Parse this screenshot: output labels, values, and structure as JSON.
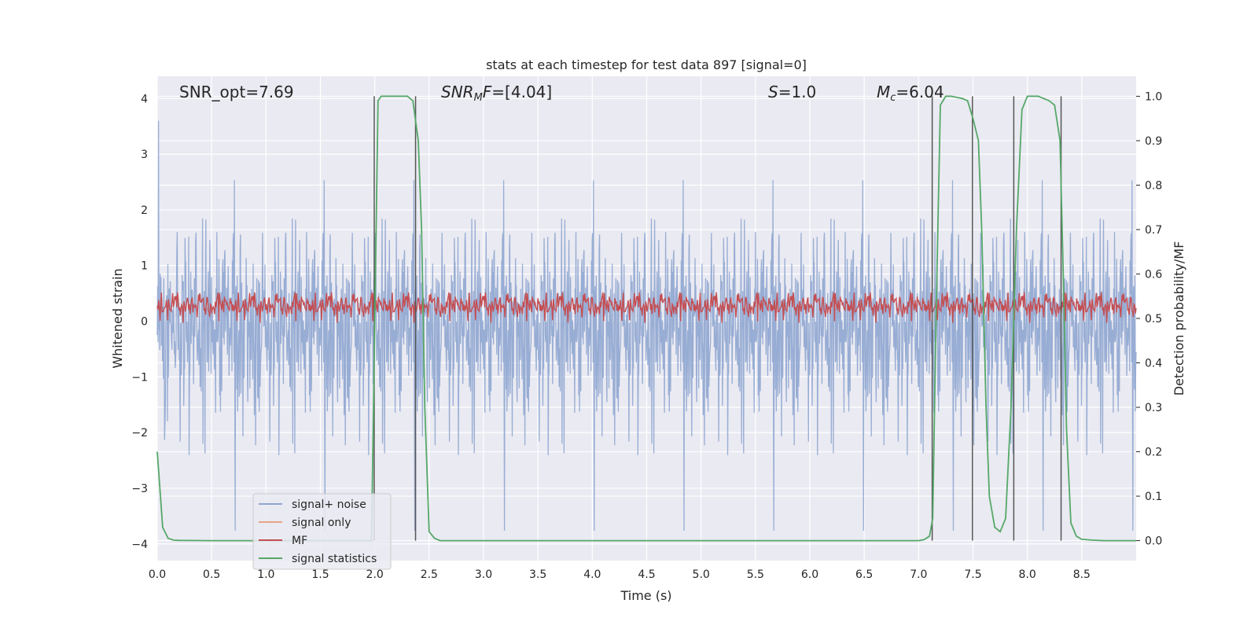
{
  "chart_data": {
    "type": "line",
    "title": "stats at each timestep for test data 897 [signal=0]",
    "xlabel": "Time (s)",
    "ylabel": "Whitened strain",
    "y2label": "Detection probability/MF",
    "xlim": [
      0.0,
      9.0
    ],
    "ylim": [
      -4.3,
      4.4
    ],
    "y2lim": [
      -0.045,
      1.045
    ],
    "x_ticks": [
      "0.0",
      "0.5",
      "1.0",
      "1.5",
      "2.0",
      "2.5",
      "3.0",
      "3.5",
      "4.0",
      "4.5",
      "5.0",
      "5.5",
      "6.0",
      "6.5",
      "7.0",
      "7.5",
      "8.0",
      "8.5"
    ],
    "y_ticks": [
      "4",
      "3",
      "2",
      "1",
      "0",
      "−1",
      "−2",
      "−3",
      "−4"
    ],
    "y2_ticks": [
      "1.0",
      "0.9",
      "0.8",
      "0.7",
      "0.6",
      "0.5",
      "0.4",
      "0.3",
      "0.2",
      "0.1",
      "0.0"
    ],
    "grid": true,
    "legend_position": "lower-left",
    "annotations": [
      {
        "text": "SNR_opt=7.69",
        "x": 0.2
      },
      {
        "text": "SNR_MF=[4.04]",
        "x": 2.6
      },
      {
        "text": "S=1.0",
        "x": 5.6
      },
      {
        "text": "M_c=6.04",
        "x": 6.6
      }
    ],
    "series": [
      {
        "name": "signal+ noise",
        "color": "#8fa6d0",
        "description": "whitened strain noise, roughly ±2 with peaks to ±3.5"
      },
      {
        "name": "signal only",
        "color": "#e8a585",
        "values": []
      },
      {
        "name": "MF",
        "color": "#c44e52",
        "description": "matched filter output around 0.3 on left axis"
      },
      {
        "name": "signal statistics",
        "color": "#55a868",
        "x": [
          0.0,
          0.05,
          0.1,
          0.15,
          0.2,
          0.5,
          1.0,
          1.5,
          1.9,
          1.97,
          2.0,
          2.03,
          2.06,
          2.1,
          2.3,
          2.35,
          2.4,
          2.43,
          2.46,
          2.5,
          2.55,
          2.6,
          3.0,
          4.0,
          5.0,
          6.0,
          7.0,
          7.05,
          7.1,
          7.13,
          7.16,
          7.2,
          7.25,
          7.3,
          7.4,
          7.45,
          7.5,
          7.55,
          7.58,
          7.62,
          7.65,
          7.7,
          7.75,
          7.8,
          7.85,
          7.9,
          7.95,
          8.0,
          8.05,
          8.1,
          8.2,
          8.25,
          8.3,
          8.33,
          8.36,
          8.4,
          8.45,
          8.5,
          8.6,
          8.7,
          8.8,
          8.9,
          9.0
        ],
        "y2": [
          0.2,
          0.03,
          0.005,
          0.001,
          0.0005,
          0.0,
          0.0,
          0.0,
          0.0,
          0.0,
          0.5,
          0.99,
          1.0,
          1.0,
          1.0,
          0.99,
          0.9,
          0.7,
          0.3,
          0.02,
          0.005,
          0.0,
          0.0,
          0.0,
          0.0,
          0.0,
          0.0,
          0.002,
          0.01,
          0.05,
          0.5,
          0.98,
          1.0,
          1.0,
          0.995,
          0.99,
          0.95,
          0.9,
          0.7,
          0.3,
          0.1,
          0.03,
          0.02,
          0.05,
          0.3,
          0.7,
          0.97,
          1.0,
          1.0,
          1.0,
          0.99,
          0.98,
          0.9,
          0.6,
          0.25,
          0.04,
          0.01,
          0.003,
          0.001,
          0.0,
          0.0,
          0.0,
          0.0
        ]
      }
    ],
    "vertical_lines_x": [
      1.995,
      2.375,
      7.125,
      7.495,
      7.875,
      8.31
    ]
  }
}
